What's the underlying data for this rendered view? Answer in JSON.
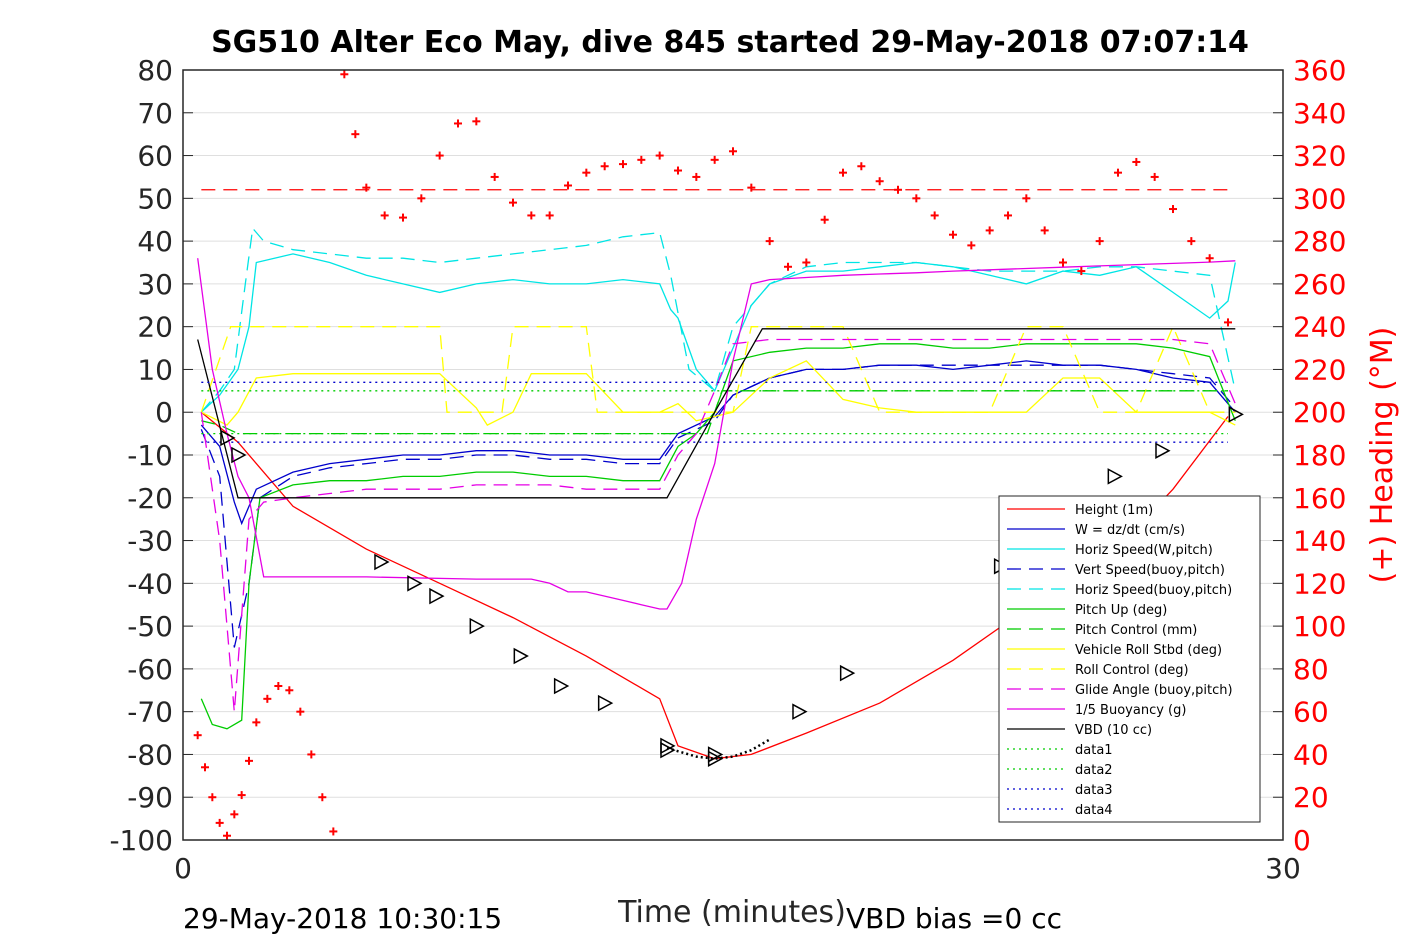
{
  "chart_data": {
    "type": "line",
    "title": "SG510 Alter Eco May, dive 845 started 29-May-2018 07:07:14",
    "xlabel": "Time (minutes)",
    "ylabel_left": "",
    "ylabel_right": "(+) Heading (°M)",
    "xlim": [
      0,
      30
    ],
    "ylim_left": [
      -100,
      80
    ],
    "ylim_right": [
      0,
      360
    ],
    "x_ticks": [
      "0",
      "30"
    ],
    "y_ticks_left": [
      "80",
      "70",
      "60",
      "50",
      "40",
      "30",
      "20",
      "10",
      "0",
      "-10",
      "-20",
      "-30",
      "-40",
      "-50",
      "-60",
      "-70",
      "-80",
      "-90",
      "-100"
    ],
    "y_ticks_right": [
      "360",
      "340",
      "320",
      "300",
      "280",
      "260",
      "240",
      "220",
      "200",
      "180",
      "160",
      "140",
      "120",
      "100",
      "80",
      "60",
      "40",
      "20",
      "0"
    ],
    "footer_left": "29-May-2018 10:30:15",
    "footer_right": "VBD bias =0 cc",
    "grid": true,
    "legend_position": "lower-right",
    "legend": [
      {
        "label": "Height (1m)",
        "color": "#ff0000",
        "dash": "solid"
      },
      {
        "label": "W = dz/dt (cm/s)",
        "color": "#0000cc",
        "dash": "solid"
      },
      {
        "label": "Horiz Speed(W,pitch)",
        "color": "#00e5e5",
        "dash": "solid"
      },
      {
        "label": "Vert Speed(buoy,pitch)",
        "color": "#0000cc",
        "dash": "dashed"
      },
      {
        "label": "Horiz Speed(buoy,pitch)",
        "color": "#00e5e5",
        "dash": "dashed"
      },
      {
        "label": "Pitch Up (deg)",
        "color": "#00cc00",
        "dash": "solid"
      },
      {
        "label": "Pitch Control (mm)",
        "color": "#00cc00",
        "dash": "dashed"
      },
      {
        "label": "Vehicle Roll Stbd (deg)",
        "color": "#ffff00",
        "dash": "solid"
      },
      {
        "label": "Roll Control (deg)",
        "color": "#ffff00",
        "dash": "dashed"
      },
      {
        "label": "Glide Angle (buoy,pitch)",
        "color": "#e500e5",
        "dash": "dashed"
      },
      {
        "label": "1/5 Buoyancy (g)",
        "color": "#e500e5",
        "dash": "solid"
      },
      {
        "label": "VBD (10 cc)",
        "color": "#000000",
        "dash": "solid"
      },
      {
        "label": "data1",
        "color": "#00cc00",
        "dash": "dotted"
      },
      {
        "label": "data2",
        "color": "#00cc00",
        "dash": "dotted"
      },
      {
        "label": "data3",
        "color": "#0000cc",
        "dash": "dotted"
      },
      {
        "label": "data4",
        "color": "#0000cc",
        "dash": "dotted"
      }
    ],
    "series": [
      {
        "name": "Height (1m)",
        "color": "#ff0000",
        "dash": "solid",
        "x": [
          0.5,
          1.5,
          3,
          5,
          7,
          9,
          11,
          13,
          13.5,
          14.5,
          15.5,
          17,
          19,
          21,
          23,
          25,
          27,
          28.5
        ],
        "y": [
          0,
          -7,
          -22,
          -32,
          -40,
          -48,
          -57,
          -67,
          -78,
          -81,
          -80,
          -75,
          -68,
          -58,
          -46,
          -36,
          -18,
          -1
        ]
      },
      {
        "name": "W = dz/dt (cm/s)",
        "color": "#0000cc",
        "dash": "solid",
        "x": [
          0.5,
          1,
          1.4,
          1.6,
          2,
          3,
          4,
          5,
          6,
          7,
          8,
          9,
          10,
          11,
          12,
          13,
          13.5,
          14.5,
          15,
          16,
          17,
          18,
          19,
          20,
          21,
          22,
          23,
          24,
          25,
          26,
          27,
          28,
          28.7
        ],
        "y": [
          -3,
          -8,
          -21,
          -26,
          -18,
          -14,
          -12,
          -11,
          -10,
          -10,
          -9,
          -9,
          -10,
          -10,
          -11,
          -11,
          -5,
          -1,
          4,
          8,
          10,
          10,
          11,
          11,
          10,
          11,
          12,
          11,
          11,
          10,
          8,
          7,
          0
        ]
      },
      {
        "name": "Horiz Speed(W,pitch)",
        "color": "#00e5e5",
        "dash": "solid",
        "x": [
          0.5,
          1,
          1.5,
          1.8,
          2,
          3,
          4,
          5,
          6,
          7,
          8,
          9,
          10,
          11,
          12,
          13,
          13.3,
          13.5,
          14,
          14.5,
          15,
          15.5,
          16,
          17,
          18,
          19,
          20,
          21,
          22,
          23,
          24,
          25,
          26,
          27,
          28,
          28.5,
          28.7
        ],
        "y": [
          0,
          4,
          10,
          20,
          35,
          37,
          35,
          32,
          30,
          28,
          30,
          31,
          30,
          30,
          31,
          30,
          24,
          22,
          10,
          5,
          15,
          25,
          30,
          33,
          33,
          34,
          35,
          34,
          32,
          30,
          33,
          32,
          34,
          28,
          22,
          26,
          35
        ]
      },
      {
        "name": "Vert Speed(buoy,pitch)",
        "color": "#0000cc",
        "dash": "dashed",
        "x": [
          0.5,
          1,
          1.4,
          1.8,
          2.1,
          3,
          4,
          5,
          6,
          7,
          8,
          9,
          10,
          11,
          12,
          13,
          13.5,
          14.5,
          15,
          16,
          17,
          18,
          19,
          20,
          21,
          22,
          23,
          24,
          25,
          26,
          27,
          28,
          28.7
        ],
        "y": [
          -4,
          -15,
          -55,
          -40,
          -20,
          -15,
          -13,
          -12,
          -11,
          -11,
          -10,
          -10,
          -11,
          -11,
          -12,
          -12,
          -6,
          -2,
          4,
          8,
          10,
          10,
          11,
          11,
          11,
          11,
          11,
          11,
          11,
          10,
          9,
          8,
          1
        ]
      },
      {
        "name": "Horiz Speed(buoy,pitch)",
        "color": "#00e5e5",
        "dash": "dashed",
        "x": [
          0.5,
          1,
          1.4,
          1.7,
          1.9,
          2.2,
          3,
          4,
          5,
          6,
          7,
          8,
          9,
          10,
          11,
          12,
          13,
          13.3,
          13.8,
          14.5,
          15,
          16,
          17,
          18,
          19,
          20,
          21,
          22,
          23,
          24,
          25,
          26,
          27,
          28,
          28.7
        ],
        "y": [
          0,
          5,
          10,
          30,
          43,
          40,
          38,
          37,
          36,
          36,
          35,
          36,
          37,
          38,
          39,
          41,
          42,
          32,
          10,
          5,
          20,
          30,
          34,
          35,
          35,
          35,
          34,
          33,
          33,
          33,
          34,
          34,
          33,
          32,
          5
        ]
      },
      {
        "name": "Pitch Up (deg)",
        "color": "#00cc00",
        "dash": "solid",
        "x": [
          0.5,
          0.8,
          1.2,
          1.6,
          1.8,
          2.1,
          3,
          4,
          5,
          6,
          7,
          8,
          9,
          10,
          11,
          12,
          13,
          13.5,
          14,
          14.5,
          15,
          16,
          17,
          18,
          19,
          20,
          21,
          22,
          23,
          24,
          25,
          26,
          27,
          28,
          28.7
        ],
        "y": [
          -67,
          -73,
          -74,
          -72,
          -40,
          -20,
          -17,
          -16,
          -16,
          -15,
          -15,
          -14,
          -14,
          -15,
          -15,
          -16,
          -16,
          -8,
          -5,
          0,
          12,
          14,
          15,
          15,
          16,
          16,
          15,
          15,
          16,
          16,
          16,
          16,
          15,
          13,
          -2
        ]
      },
      {
        "name": "Pitch Control (mm)",
        "color": "#00cc00",
        "dash": "dashed",
        "x": [
          0.5,
          1,
          1.5,
          1.8,
          2.2,
          5,
          10,
          13,
          13.3,
          13.6,
          14,
          14.3,
          14.7,
          15,
          15.5,
          20,
          25,
          28.5
        ],
        "y": [
          -2,
          -3,
          -5,
          -5,
          -5,
          -5,
          -5,
          -5,
          -5,
          -5,
          -5,
          -5,
          5,
          5,
          5,
          5,
          5,
          5
        ]
      },
      {
        "name": "Vehicle Roll Stbd (deg)",
        "color": "#ffff00",
        "dash": "solid",
        "x": [
          0.5,
          1.2,
          1.5,
          2,
          3,
          4,
          5,
          6,
          7,
          8,
          8.3,
          9,
          9.5,
          10,
          11,
          12,
          13,
          13.5,
          14,
          15,
          16,
          17,
          18,
          19,
          20,
          21,
          22,
          23,
          24,
          25,
          26,
          27,
          28,
          28.7
        ],
        "y": [
          0,
          -3,
          0,
          8,
          9,
          9,
          9,
          9,
          9,
          1,
          -3,
          0,
          9,
          9,
          9,
          0,
          0,
          2,
          -2,
          0,
          8,
          12,
          3,
          1,
          0,
          0,
          0,
          0,
          8,
          8,
          0,
          0,
          0,
          -3
        ]
      },
      {
        "name": "Roll Control (deg)",
        "color": "#ffff00",
        "dash": "dashed",
        "x": [
          0.5,
          1.3,
          1.6,
          2,
          3,
          4,
          5,
          6,
          7,
          7.2,
          8,
          8.7,
          9,
          10,
          11,
          11.3,
          12,
          13,
          13.5,
          14,
          15,
          15.5,
          16,
          17,
          18,
          19,
          20,
          21,
          22,
          23,
          24,
          25,
          26,
          27,
          28,
          28.7
        ],
        "y": [
          0,
          20,
          20,
          20,
          20,
          20,
          20,
          20,
          20,
          0,
          0,
          0,
          20,
          20,
          20,
          0,
          0,
          0,
          0,
          0,
          0,
          20,
          20,
          20,
          20,
          0,
          0,
          0,
          0,
          20,
          20,
          0,
          0,
          20,
          0,
          0
        ]
      },
      {
        "name": "Glide Angle (buoy,pitch)",
        "color": "#e500e5",
        "dash": "dashed",
        "x": [
          0.5,
          1,
          1.4,
          1.8,
          2.2,
          3,
          4,
          5,
          6,
          7,
          8,
          9,
          10,
          11,
          12,
          13,
          13.5,
          14,
          14.5,
          15,
          16,
          17,
          18,
          19,
          20,
          21,
          22,
          23,
          24,
          25,
          26,
          27,
          28,
          28.7
        ],
        "y": [
          0,
          -30,
          -70,
          -25,
          -21,
          -20,
          -19,
          -18,
          -18,
          -18,
          -17,
          -17,
          -17,
          -18,
          -18,
          -18,
          -10,
          -5,
          5,
          16,
          17,
          17,
          17,
          17,
          17,
          17,
          17,
          17,
          17,
          17,
          17,
          17,
          16,
          2
        ]
      },
      {
        "name": "1/5 Buoyancy (g)",
        "color": "#e500e5",
        "dash": "solid",
        "x": [
          0.4,
          0.8,
          1.2,
          1.5,
          1.8,
          2.2,
          5,
          8,
          9.5,
          10,
          10.5,
          11,
          12,
          12.5,
          13,
          13.2,
          13.6,
          14,
          14.5,
          15,
          15.5,
          16,
          17,
          18,
          19,
          20,
          21,
          22,
          23,
          24,
          25,
          26,
          27,
          28,
          28.7
        ],
        "y": [
          36,
          10,
          -5,
          -15,
          -20,
          -38.5,
          -38.5,
          -39,
          -39,
          -40,
          -42,
          -42,
          -44,
          -45,
          -46,
          -46,
          -40,
          -25,
          -12,
          12,
          30,
          31,
          31.5,
          32,
          32.3,
          32.6,
          33,
          33.3,
          33.6,
          33.9,
          34.2,
          34.5,
          34.8,
          35.1,
          35.4
        ]
      },
      {
        "name": "VBD (10 cc)",
        "color": "#000000",
        "dash": "solid",
        "x": [
          0.4,
          1.5,
          1.5,
          13.2,
          14.5,
          15.8,
          16.2,
          28.7
        ],
        "y": [
          17,
          -20,
          -20,
          -20,
          0,
          19.5,
          19.5,
          19.5
        ]
      },
      {
        "name": "data1",
        "color": "#00cc00",
        "dash": "dotted",
        "x": [
          0.5,
          28.5
        ],
        "y": [
          -5,
          -5
        ]
      },
      {
        "name": "data2",
        "color": "#00cc00",
        "dash": "dotted",
        "x": [
          0.5,
          28.5
        ],
        "y": [
          5,
          5
        ]
      },
      {
        "name": "data3",
        "color": "#0000cc",
        "dash": "dotted",
        "x": [
          0.5,
          28.5
        ],
        "y": [
          -7,
          -7
        ]
      },
      {
        "name": "data4",
        "color": "#0000cc",
        "dash": "dotted",
        "x": [
          0.5,
          28.5
        ],
        "y": [
          7,
          7
        ]
      }
    ],
    "heading_target": {
      "color": "#ff0000",
      "dash": "dashed",
      "x": [
        0.5,
        28.5
      ],
      "y": [
        304,
        304
      ]
    },
    "heading": {
      "color": "#ff0000",
      "x": [
        0.4,
        0.6,
        0.8,
        1,
        1.2,
        1.4,
        1.6,
        1.8,
        2,
        2.3,
        2.6,
        2.9,
        3.2,
        3.5,
        3.8,
        4.1,
        4.4,
        4.7,
        5,
        5.5,
        6,
        6.5,
        7,
        7.5,
        8,
        8.5,
        9,
        9.5,
        10,
        10.5,
        11,
        11.5,
        12,
        12.5,
        13,
        13.5,
        14,
        14.5,
        15,
        15.5,
        16,
        16.5,
        17,
        17.5,
        18,
        18.5,
        19,
        19.5,
        20,
        20.5,
        21,
        21.5,
        22,
        22.5,
        23,
        23.5,
        24,
        24.5,
        25,
        25.5,
        26,
        26.5,
        27,
        27.5,
        28,
        28.5
      ],
      "y": [
        49,
        34,
        20,
        8,
        2,
        12,
        21,
        37,
        55,
        66,
        72,
        70,
        60,
        40,
        20,
        4,
        358,
        330,
        305,
        292,
        291,
        300,
        320,
        335,
        336,
        310,
        298,
        292,
        292,
        306,
        312,
        315,
        316,
        318,
        320,
        313,
        310,
        318,
        322,
        305,
        280,
        268,
        270,
        290,
        312,
        315,
        308,
        304,
        300,
        292,
        283,
        278,
        285,
        292,
        300,
        285,
        270,
        266,
        280,
        312,
        317,
        310,
        295,
        280,
        272,
        242
      ]
    },
    "markers": {
      "x": [
        1.2,
        1.5,
        13.2,
        14.5,
        28.7,
        5.4,
        6.3,
        6.9,
        8.0,
        9.2,
        10.3,
        11.5,
        16.8,
        18.1,
        22.3,
        26.7,
        25.4,
        13.2,
        14.5
      ],
      "y": [
        -6,
        -10,
        -79,
        -81,
        -0.5,
        -35,
        -40,
        -43,
        -50,
        -57,
        -64,
        -68,
        -70,
        -61,
        -36,
        -9,
        -15,
        -78,
        -80
      ]
    },
    "dotted_bottom": {
      "color": "#000000",
      "x": [
        13.2,
        13.6,
        14,
        14.5,
        15,
        15.5,
        16
      ],
      "y": [
        -78.5,
        -79.5,
        -80.5,
        -81,
        -80.5,
        -79,
        -76.5
      ]
    }
  }
}
